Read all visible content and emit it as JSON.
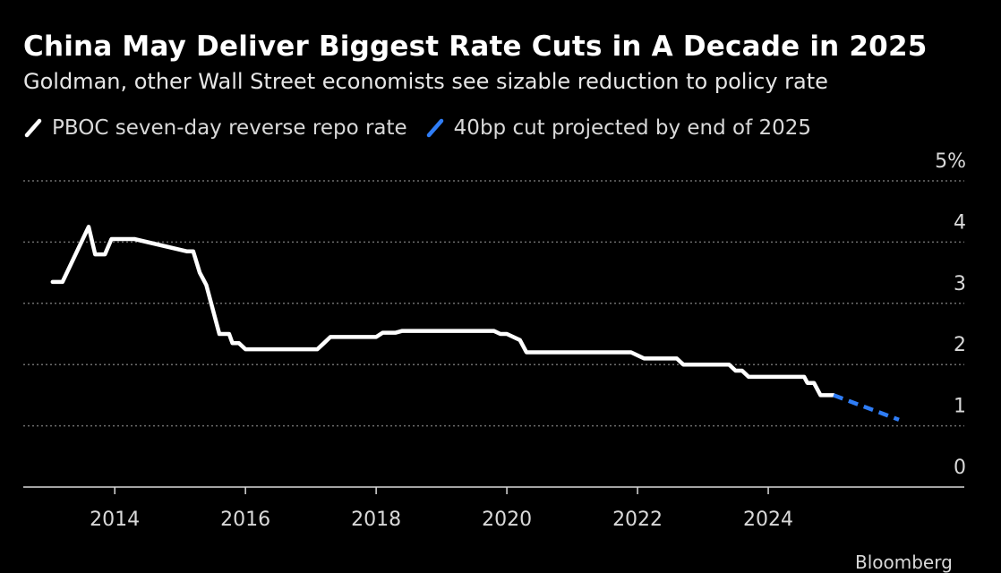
{
  "chart_data": {
    "type": "line",
    "title": "China May Deliver Biggest Rate Cuts in A Decade in 2025",
    "subtitle": "Goldman, other Wall Street economists see sizable reduction to policy rate",
    "xlabel": "",
    "ylabel": "",
    "xlim": [
      2012.6,
      2027.0
    ],
    "ylim": [
      0,
      5
    ],
    "x_ticks": [
      2014,
      2016,
      2018,
      2020,
      2022,
      2024
    ],
    "x_tick_labels": [
      "2014",
      "2016",
      "2018",
      "2020",
      "2022",
      "2024"
    ],
    "y_ticks": [
      0,
      1,
      2,
      3,
      4,
      5
    ],
    "y_tick_labels": [
      "0",
      "1",
      "2",
      "3",
      "4",
      "5%"
    ],
    "grid": true,
    "legend_position": "top-left",
    "series": [
      {
        "name": "PBOC seven-day reverse repo rate",
        "color": "#ffffff",
        "style": "solid",
        "points": [
          [
            2013.05,
            3.35
          ],
          [
            2013.2,
            3.35
          ],
          [
            2013.6,
            4.25
          ],
          [
            2013.7,
            3.8
          ],
          [
            2013.85,
            3.8
          ],
          [
            2013.95,
            4.05
          ],
          [
            2014.3,
            4.05
          ],
          [
            2015.1,
            3.85
          ],
          [
            2015.2,
            3.85
          ],
          [
            2015.3,
            3.5
          ],
          [
            2015.4,
            3.3
          ],
          [
            2015.6,
            2.5
          ],
          [
            2015.75,
            2.5
          ],
          [
            2015.8,
            2.35
          ],
          [
            2015.9,
            2.35
          ],
          [
            2016.0,
            2.25
          ],
          [
            2017.0,
            2.25
          ],
          [
            2017.1,
            2.25
          ],
          [
            2017.2,
            2.35
          ],
          [
            2017.3,
            2.45
          ],
          [
            2017.5,
            2.45
          ],
          [
            2017.9,
            2.45
          ],
          [
            2018.0,
            2.45
          ],
          [
            2018.1,
            2.52
          ],
          [
            2018.3,
            2.52
          ],
          [
            2018.4,
            2.55
          ],
          [
            2019.8,
            2.55
          ],
          [
            2019.9,
            2.5
          ],
          [
            2020.0,
            2.5
          ],
          [
            2020.2,
            2.4
          ],
          [
            2020.3,
            2.2
          ],
          [
            2021.9,
            2.2
          ],
          [
            2022.1,
            2.1
          ],
          [
            2022.6,
            2.1
          ],
          [
            2022.7,
            2.0
          ],
          [
            2023.4,
            2.0
          ],
          [
            2023.5,
            1.9
          ],
          [
            2023.6,
            1.9
          ],
          [
            2023.7,
            1.8
          ],
          [
            2024.45,
            1.8
          ],
          [
            2024.55,
            1.8
          ],
          [
            2024.6,
            1.7
          ],
          [
            2024.7,
            1.7
          ],
          [
            2024.8,
            1.5
          ],
          [
            2025.0,
            1.5
          ]
        ]
      },
      {
        "name": "40bp cut projected by end of 2025",
        "color": "#2f7df6",
        "style": "dashed",
        "points": [
          [
            2025.0,
            1.5
          ],
          [
            2026.0,
            1.1
          ]
        ]
      }
    ]
  },
  "source": "Bloomberg"
}
